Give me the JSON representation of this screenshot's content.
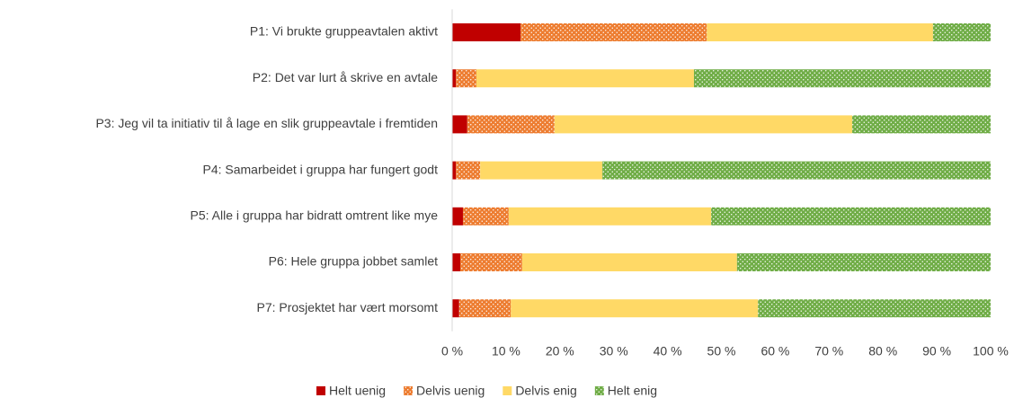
{
  "chart_data": {
    "type": "stacked_bar_horizontal",
    "categories": [
      "P1: Vi brukte gruppeavtalen aktivt",
      "P2: Det var lurt å skrive en avtale",
      "P3: Jeg vil ta initiativ til å lage en slik gruppeavtale i fremtiden",
      "P4: Samarbeidet i gruppa har fungert godt",
      "P5: Alle i gruppa har bidratt omtrent like mye",
      "P6: Hele gruppa jobbet samlet",
      "P7: Prosjektet har vært morsomt"
    ],
    "series": [
      {
        "name": "Helt uenig",
        "color": "#c00000",
        "pattern": "solid",
        "values": [
          12.7,
          0.7,
          2.8,
          0.7,
          2.0,
          1.5,
          1.3
        ]
      },
      {
        "name": "Delvis uenig",
        "color": "#ed7d31",
        "pattern": "dots",
        "values": [
          34.6,
          3.8,
          16.2,
          4.5,
          8.5,
          11.5,
          9.6
        ]
      },
      {
        "name": "Delvis enig",
        "color": "#ffd966",
        "pattern": "solid",
        "values": [
          42.0,
          40.4,
          55.3,
          22.7,
          37.6,
          39.9,
          45.9
        ]
      },
      {
        "name": "Helt enig",
        "color": "#70ad47",
        "pattern": "dots",
        "values": [
          10.7,
          55.1,
          25.7,
          72.1,
          51.9,
          47.1,
          43.2
        ]
      }
    ],
    "xlim": [
      0,
      100
    ],
    "xticks": [
      {
        "value": 0,
        "label": "0 %"
      },
      {
        "value": 10,
        "label": "10 %"
      },
      {
        "value": 20,
        "label": "20 %"
      },
      {
        "value": 30,
        "label": "30 %"
      },
      {
        "value": 40,
        "label": "40 %"
      },
      {
        "value": 50,
        "label": "50 %"
      },
      {
        "value": 60,
        "label": "60 %"
      },
      {
        "value": 70,
        "label": "70 %"
      },
      {
        "value": 80,
        "label": "80 %"
      },
      {
        "value": 90,
        "label": "90 %"
      },
      {
        "value": 100,
        "label": "100 %"
      }
    ],
    "legend": "bottom"
  }
}
